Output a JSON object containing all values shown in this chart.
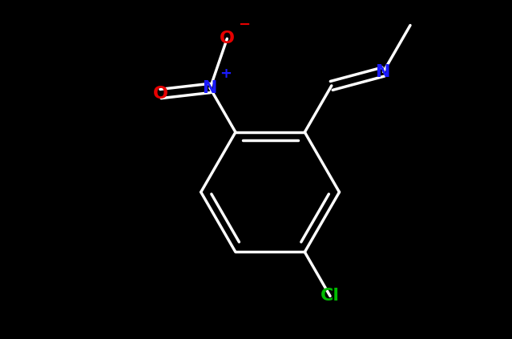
{
  "background": "#000000",
  "bond_color": "#ffffff",
  "bond_lw": 2.5,
  "dbl_off": 0.016,
  "colors": {
    "N_blue": "#1a1aff",
    "O_red": "#e60000",
    "Cl_green": "#00bb00",
    "white": "#ffffff"
  },
  "font_size": 16,
  "charge_size": 11,
  "xlim": [
    -0.75,
    0.75
  ],
  "ylim": [
    -0.6,
    0.6
  ]
}
